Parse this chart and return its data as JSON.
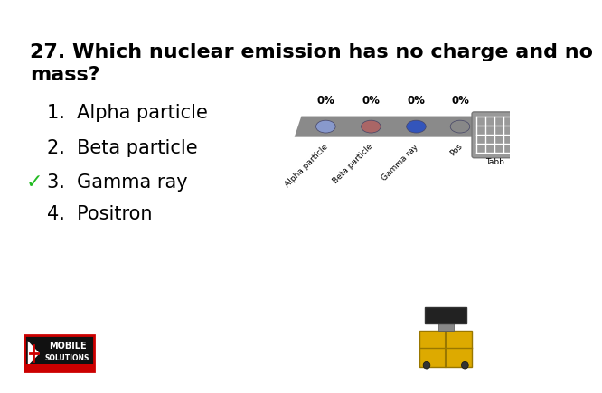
{
  "title_line1": "27. Which nuclear emission has no charge and no",
  "title_line2": "mass?",
  "title_fontsize": 16,
  "title_fontweight": "bold",
  "title_font": "Arial Black",
  "answers": [
    "1.  Alpha particle",
    "2.  Beta particle",
    "3.  Gamma ray",
    "4.  Positron"
  ],
  "answer_fontsize": 15,
  "answer_font": "Arial",
  "correct_answer_index": 2,
  "checkmark_color": "#22bb22",
  "background_color": "#ffffff",
  "bar_labels": [
    "Alpha particle",
    "Beta particle",
    "Gamma ray",
    "Pos"
  ],
  "bar_ellipse_colors": [
    "#8899cc",
    "#aa6666",
    "#3355bb",
    "#888888"
  ],
  "bar_pct_labels": [
    "0%",
    "0%",
    "0%",
    "0%"
  ],
  "bar_gray": "#8a8a8a",
  "tabb_gray": "#999999",
  "tabb_light": "#cccccc"
}
